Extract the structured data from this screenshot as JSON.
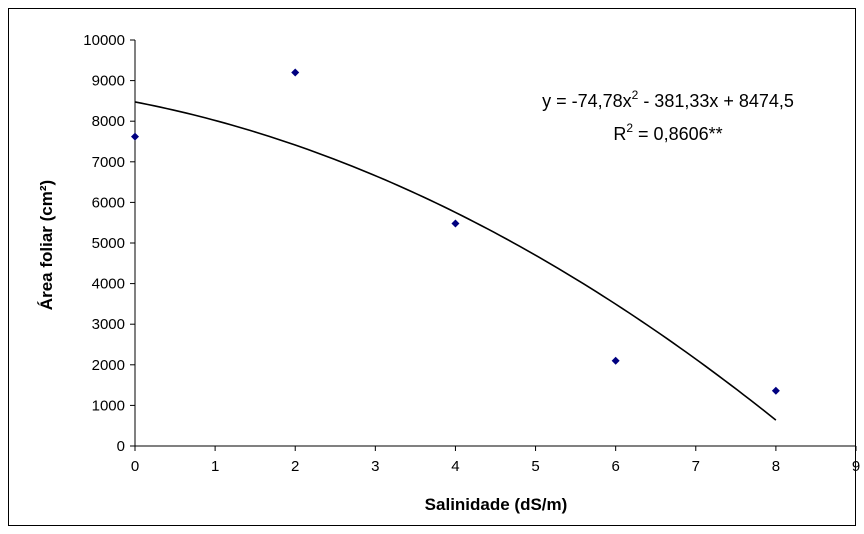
{
  "chart_data": {
    "type": "scatter",
    "x": [
      0,
      2,
      4,
      6,
      8
    ],
    "y": [
      7620,
      9200,
      5480,
      2100,
      1360
    ],
    "marker_color": "#000080",
    "xlabel": "Salinidade (dS/m)",
    "ylabel": "Área foliar (cm²)",
    "xlim": [
      0,
      9
    ],
    "ylim": [
      0,
      10000
    ],
    "x_ticks": [
      "0",
      "1",
      "2",
      "3",
      "4",
      "5",
      "6",
      "7",
      "8",
      "9"
    ],
    "y_ticks": [
      "0",
      "1000",
      "2000",
      "3000",
      "4000",
      "5000",
      "6000",
      "7000",
      "8000",
      "9000",
      "10000"
    ],
    "grid": false,
    "trendline": {
      "type": "polynomial",
      "coefficients": {
        "a": -74.78,
        "b": -381.33,
        "c": 8474.5
      },
      "x_range": [
        0,
        8
      ],
      "equation_parts": [
        "y = -74,78x",
        "2",
        " - 381,33x + 8474,5"
      ],
      "r2_parts": [
        "R",
        "2",
        " = 0,8606**"
      ]
    }
  }
}
